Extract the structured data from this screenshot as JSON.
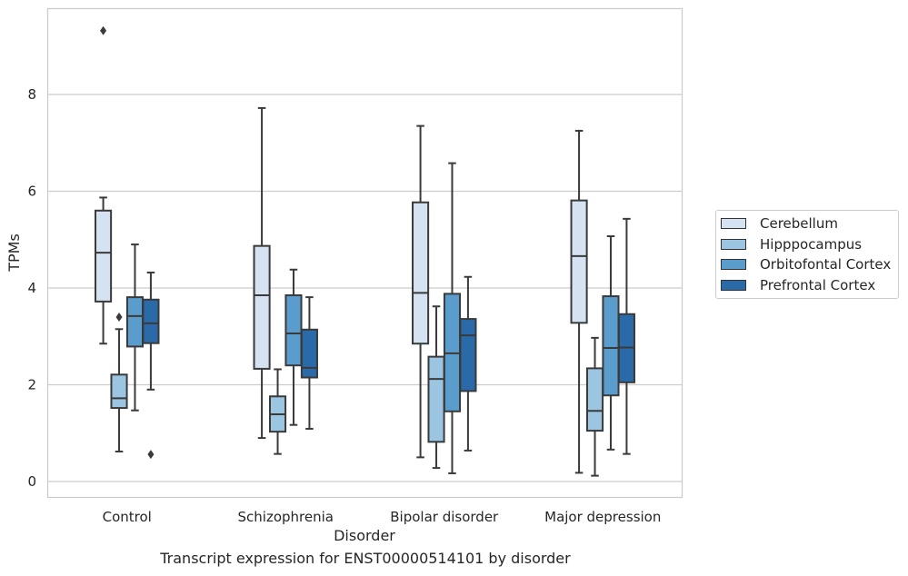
{
  "caption": "Transcript expression for ENST00000514101 by disorder",
  "chart_data": {
    "type": "box",
    "xlabel": "Disorder",
    "ylabel": "TPMs",
    "ylim": [
      -0.35,
      9.8
    ],
    "yticks": [
      0,
      2,
      4,
      6,
      8
    ],
    "grid": "horizontal",
    "legend_position": "right",
    "categories": [
      "Control",
      "Schizophrenia",
      "Bipolar disorder",
      "Major depression"
    ],
    "series": [
      {
        "name": "Cerebellum",
        "color": "#d4e2f1",
        "boxes": [
          {
            "whislo": 2.85,
            "q1": 3.72,
            "med": 4.73,
            "q3": 5.6,
            "whishi": 5.87,
            "fliers": [
              9.32
            ]
          },
          {
            "whislo": 0.9,
            "q1": 2.33,
            "med": 3.85,
            "q3": 4.87,
            "whishi": 7.72,
            "fliers": []
          },
          {
            "whislo": 0.5,
            "q1": 2.85,
            "med": 3.9,
            "q3": 5.77,
            "whishi": 7.35,
            "fliers": []
          },
          {
            "whislo": 0.18,
            "q1": 3.28,
            "med": 4.66,
            "q3": 5.81,
            "whishi": 7.25,
            "fliers": []
          }
        ]
      },
      {
        "name": "Hipppocampus",
        "color": "#9bc5e0",
        "boxes": [
          {
            "whislo": 0.62,
            "q1": 1.52,
            "med": 1.72,
            "q3": 2.21,
            "whishi": 3.15,
            "fliers": [
              3.4
            ]
          },
          {
            "whislo": 0.57,
            "q1": 1.03,
            "med": 1.39,
            "q3": 1.76,
            "whishi": 2.32,
            "fliers": []
          },
          {
            "whislo": 0.28,
            "q1": 0.82,
            "med": 2.12,
            "q3": 2.58,
            "whishi": 3.62,
            "fliers": []
          },
          {
            "whislo": 0.12,
            "q1": 1.05,
            "med": 1.46,
            "q3": 2.34,
            "whishi": 2.97,
            "fliers": []
          }
        ]
      },
      {
        "name": "Orbitofontal Cortex",
        "color": "#5a9ccc",
        "boxes": [
          {
            "whislo": 1.47,
            "q1": 2.79,
            "med": 3.42,
            "q3": 3.81,
            "whishi": 4.9,
            "fliers": []
          },
          {
            "whislo": 1.17,
            "q1": 2.4,
            "med": 3.06,
            "q3": 3.85,
            "whishi": 4.38,
            "fliers": []
          },
          {
            "whislo": 0.17,
            "q1": 1.45,
            "med": 2.65,
            "q3": 3.88,
            "whishi": 6.58,
            "fliers": []
          },
          {
            "whislo": 0.66,
            "q1": 1.78,
            "med": 2.76,
            "q3": 3.83,
            "whishi": 5.07,
            "fliers": []
          }
        ]
      },
      {
        "name": "Prefrontal Cortex",
        "color": "#2a6aa8",
        "boxes": [
          {
            "whislo": 1.9,
            "q1": 2.86,
            "med": 3.27,
            "q3": 3.76,
            "whishi": 4.32,
            "fliers": [
              0.56
            ]
          },
          {
            "whislo": 1.09,
            "q1": 2.15,
            "med": 2.35,
            "q3": 3.14,
            "whishi": 3.81,
            "fliers": []
          },
          {
            "whislo": 0.64,
            "q1": 1.87,
            "med": 3.02,
            "q3": 3.36,
            "whishi": 4.23,
            "fliers": []
          },
          {
            "whislo": 0.57,
            "q1": 2.05,
            "med": 2.77,
            "q3": 3.46,
            "whishi": 5.43,
            "fliers": []
          }
        ]
      }
    ]
  }
}
